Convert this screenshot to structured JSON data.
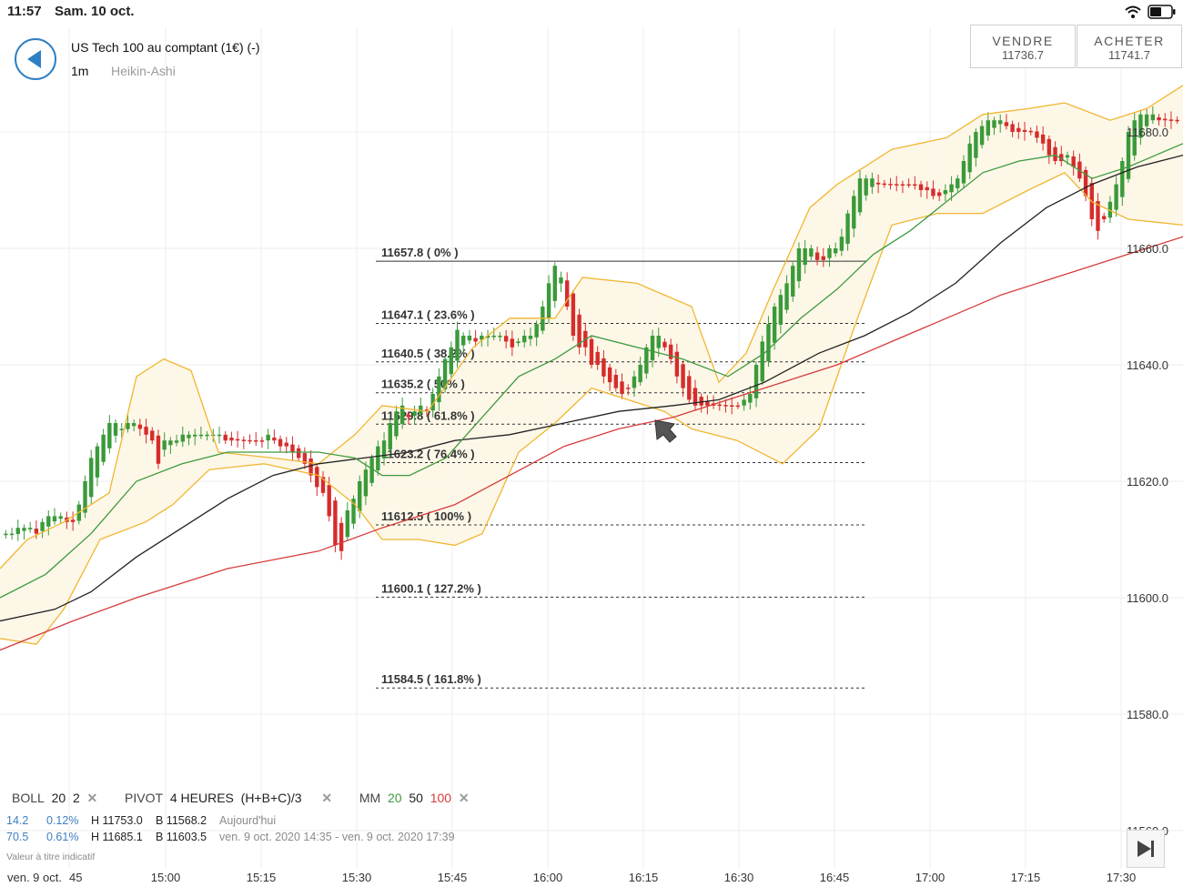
{
  "status": {
    "time": "11:57",
    "date": "Sam. 10 oct."
  },
  "header": {
    "instrument": "US Tech 100 au comptant (1€) (-)",
    "timeframe": "1m",
    "chart_type": "Heikin-Ashi"
  },
  "trade": {
    "sell_label": "VENDRE",
    "sell_price": "11736.7",
    "buy_label": "ACHETER",
    "buy_price": "11741.7"
  },
  "chart_data": {
    "type": "candlestick",
    "title": "",
    "x_ticks": [
      "ven. 9 oct.",
      "45",
      "15:00",
      "15:15",
      "15:30",
      "15:45",
      "16:00",
      "16:15",
      "16:30",
      "16:45",
      "17:00",
      "17:15",
      "17:30"
    ],
    "y_ticks": [
      "11680.0",
      "11660.0",
      "11640.0",
      "11620.0",
      "11600.0",
      "11580.0",
      "11560.0"
    ],
    "ylim": [
      11560,
      11700
    ],
    "fibonacci": [
      {
        "label": "11657.8 ( 0% )",
        "value": 11657.8
      },
      {
        "label": "11647.1 ( 23.6% )",
        "value": 11647.1
      },
      {
        "label": "11640.5 ( 38.2% )",
        "value": 11640.5
      },
      {
        "label": "11635.2 ( 50% )",
        "value": 11635.2
      },
      {
        "label": "11629.8 ( 61.8% )",
        "value": 11629.8
      },
      {
        "label": "11623.2 ( 76.4% )",
        "value": 11623.2
      },
      {
        "label": "11612.5 ( 100% )",
        "value": 11612.5
      },
      {
        "label": "11600.1 ( 127.2% )",
        "value": 11600.1
      },
      {
        "label": "11584.5 ( 161.8% )",
        "value": 11584.5
      }
    ],
    "close_series": [
      11611,
      11611,
      11612,
      11612,
      11612,
      11611,
      11613,
      11614,
      11614,
      11614,
      11613,
      11613,
      11616,
      11620,
      11624,
      11626,
      11628,
      11630,
      11630,
      11629,
      11630,
      11630,
      11629,
      11628,
      11627,
      11623,
      11627,
      11627,
      11627,
      11628,
      11628,
      11628,
      11628,
      11628,
      11628,
      11628,
      11627,
      11627,
      11627,
      11627,
      11627,
      11627,
      11627,
      11628,
      11627,
      11626,
      11626,
      11625,
      11624,
      11623,
      11621,
      11619,
      11618,
      11614,
      11609,
      11608,
      11615,
      11617,
      11620,
      11622,
      11624,
      11626,
      11627,
      11630,
      11632,
      11633,
      11631,
      11632,
      11633,
      11632,
      11635,
      11638,
      11641,
      11643,
      11646,
      11645,
      11645,
      11644,
      11645,
      11645,
      11645,
      11645,
      11644,
      11643,
      11644,
      11645,
      11645,
      11647,
      11650,
      11654,
      11657,
      11655,
      11650,
      11645,
      11643,
      11643,
      11640,
      11640,
      11638,
      11637,
      11636,
      11635,
      11636,
      11638,
      11640,
      11643,
      11645,
      11645,
      11643,
      11641,
      11638,
      11636,
      11634,
      11633,
      11633,
      11633,
      11633,
      11633,
      11633,
      11633,
      11633,
      11634,
      11635,
      11640,
      11644,
      11647,
      11650,
      11652,
      11654,
      11657,
      11660,
      11660,
      11660,
      11658,
      11658,
      11660,
      11660,
      11662,
      11666,
      11669,
      11672,
      11672,
      11672,
      11671,
      11671,
      11671,
      11671,
      11671,
      11671,
      11671,
      11670,
      11670,
      11669,
      11669,
      11670,
      11671,
      11672,
      11675,
      11678,
      11680,
      11681,
      11682,
      11682,
      11682,
      11681,
      11680,
      11680,
      11680,
      11680,
      11679,
      11678,
      11676,
      11675,
      11675,
      11676,
      11674,
      11672,
      11669,
      11665,
      11663,
      11665,
      11668,
      11671,
      11675,
      11680,
      11682,
      11683,
      11683,
      11683,
      11682,
      11682,
      11682,
      11682
    ],
    "bollinger_upper": [
      [
        0,
        11605
      ],
      [
        30,
        11610
      ],
      [
        70,
        11613
      ],
      [
        120,
        11618
      ],
      [
        150,
        11638
      ],
      [
        180,
        11641
      ],
      [
        210,
        11639
      ],
      [
        240,
        11625
      ],
      [
        300,
        11624
      ],
      [
        350,
        11623
      ],
      [
        390,
        11628
      ],
      [
        420,
        11633
      ],
      [
        470,
        11632
      ],
      [
        520,
        11643
      ],
      [
        560,
        11648
      ],
      [
        610,
        11648
      ],
      [
        640,
        11655
      ],
      [
        700,
        11654
      ],
      [
        760,
        11650
      ],
      [
        790,
        11637
      ],
      [
        820,
        11642
      ],
      [
        850,
        11653
      ],
      [
        890,
        11667
      ],
      [
        920,
        11671
      ],
      [
        940,
        11673
      ],
      [
        980,
        11677
      ],
      [
        1040,
        11679
      ],
      [
        1080,
        11683
      ],
      [
        1130,
        11684
      ],
      [
        1170,
        11685
      ],
      [
        1220,
        11682
      ],
      [
        1260,
        11684
      ],
      [
        1300,
        11688
      ]
    ],
    "bollinger_lower": [
      [
        0,
        11593
      ],
      [
        40,
        11592
      ],
      [
        70,
        11598
      ],
      [
        110,
        11610
      ],
      [
        160,
        11613
      ],
      [
        190,
        11616
      ],
      [
        230,
        11622
      ],
      [
        290,
        11623
      ],
      [
        350,
        11621
      ],
      [
        390,
        11616
      ],
      [
        420,
        11610
      ],
      [
        460,
        11610
      ],
      [
        500,
        11609
      ],
      [
        530,
        11611
      ],
      [
        570,
        11625
      ],
      [
        610,
        11630
      ],
      [
        650,
        11636
      ],
      [
        690,
        11634
      ],
      [
        730,
        11632
      ],
      [
        760,
        11629
      ],
      [
        810,
        11627
      ],
      [
        860,
        11623
      ],
      [
        900,
        11629
      ],
      [
        940,
        11647
      ],
      [
        980,
        11664
      ],
      [
        1030,
        11666
      ],
      [
        1080,
        11666
      ],
      [
        1130,
        11670
      ],
      [
        1170,
        11673
      ],
      [
        1200,
        11668
      ],
      [
        1240,
        11665
      ],
      [
        1300,
        11664
      ]
    ],
    "ma20": [
      [
        0,
        11600
      ],
      [
        50,
        11604
      ],
      [
        100,
        11611
      ],
      [
        150,
        11620
      ],
      [
        200,
        11623
      ],
      [
        250,
        11625
      ],
      [
        300,
        11625
      ],
      [
        350,
        11625
      ],
      [
        390,
        11624
      ],
      [
        420,
        11621
      ],
      [
        450,
        11621
      ],
      [
        490,
        11624
      ],
      [
        530,
        11631
      ],
      [
        570,
        11638
      ],
      [
        610,
        11641
      ],
      [
        650,
        11645
      ],
      [
        700,
        11643
      ],
      [
        750,
        11641
      ],
      [
        800,
        11638
      ],
      [
        840,
        11642
      ],
      [
        880,
        11648
      ],
      [
        920,
        11653
      ],
      [
        960,
        11659
      ],
      [
        1000,
        11663
      ],
      [
        1040,
        11668
      ],
      [
        1080,
        11673
      ],
      [
        1120,
        11675
      ],
      [
        1160,
        11676
      ],
      [
        1200,
        11672
      ],
      [
        1240,
        11674
      ],
      [
        1300,
        11678
      ]
    ],
    "ma50": [
      [
        0,
        11596
      ],
      [
        60,
        11598
      ],
      [
        100,
        11601
      ],
      [
        150,
        11607
      ],
      [
        200,
        11612
      ],
      [
        250,
        11617
      ],
      [
        300,
        11621
      ],
      [
        350,
        11623
      ],
      [
        400,
        11624
      ],
      [
        450,
        11625
      ],
      [
        500,
        11627
      ],
      [
        560,
        11628
      ],
      [
        620,
        11630
      ],
      [
        680,
        11632
      ],
      [
        740,
        11633
      ],
      [
        790,
        11634
      ],
      [
        840,
        11637
      ],
      [
        900,
        11642
      ],
      [
        950,
        11645
      ],
      [
        1000,
        11649
      ],
      [
        1050,
        11654
      ],
      [
        1100,
        11661
      ],
      [
        1150,
        11667
      ],
      [
        1200,
        11671
      ],
      [
        1250,
        11674
      ],
      [
        1300,
        11676
      ]
    ],
    "ma100": [
      [
        0,
        11591
      ],
      [
        80,
        11596
      ],
      [
        150,
        11600
      ],
      [
        250,
        11605
      ],
      [
        350,
        11608
      ],
      [
        420,
        11612
      ],
      [
        500,
        11616
      ],
      [
        560,
        11621
      ],
      [
        620,
        11626
      ],
      [
        680,
        11629
      ],
      [
        740,
        11631
      ],
      [
        800,
        11634
      ],
      [
        860,
        11637
      ],
      [
        920,
        11640
      ],
      [
        980,
        11644
      ],
      [
        1040,
        11648
      ],
      [
        1100,
        11652
      ],
      [
        1160,
        11655
      ],
      [
        1220,
        11658
      ],
      [
        1300,
        11662
      ]
    ],
    "colors": {
      "up": "#3a9a3a",
      "down": "#d62c2c",
      "bollinger": "#f0b731",
      "ma20": "#3f9a3f",
      "ma50": "#222222",
      "ma100": "#d63b3b"
    }
  },
  "legend": {
    "boll_label": "BOLL",
    "boll_period": "20",
    "boll_dev": "2",
    "pivot_label": "PIVOT",
    "pivot_period": "4 HEURES",
    "pivot_formula": "(H+B+C)/3",
    "mm_label": "MM",
    "mm_20": "20",
    "mm_50": "50",
    "mm_100": "100",
    "row1": {
      "change": "14.2",
      "pct": "0.12%",
      "high": "H 11753.0",
      "low": "B 11568.2",
      "period": "Aujourd'hui"
    },
    "row2": {
      "change": "70.5",
      "pct": "0.61%",
      "high": "H 11685.1",
      "low": "B 11603.5",
      "period": "ven. 9 oct. 2020 14:35 - ven. 9 oct. 2020 17:39"
    },
    "disclaimer": "Valeur à titre indicatif",
    "remove_glyph": "✕"
  },
  "icons": {
    "back": "back-arrow-icon",
    "next": "skip-forward-icon",
    "wifi": "wifi-icon",
    "battery": "battery-icon"
  }
}
